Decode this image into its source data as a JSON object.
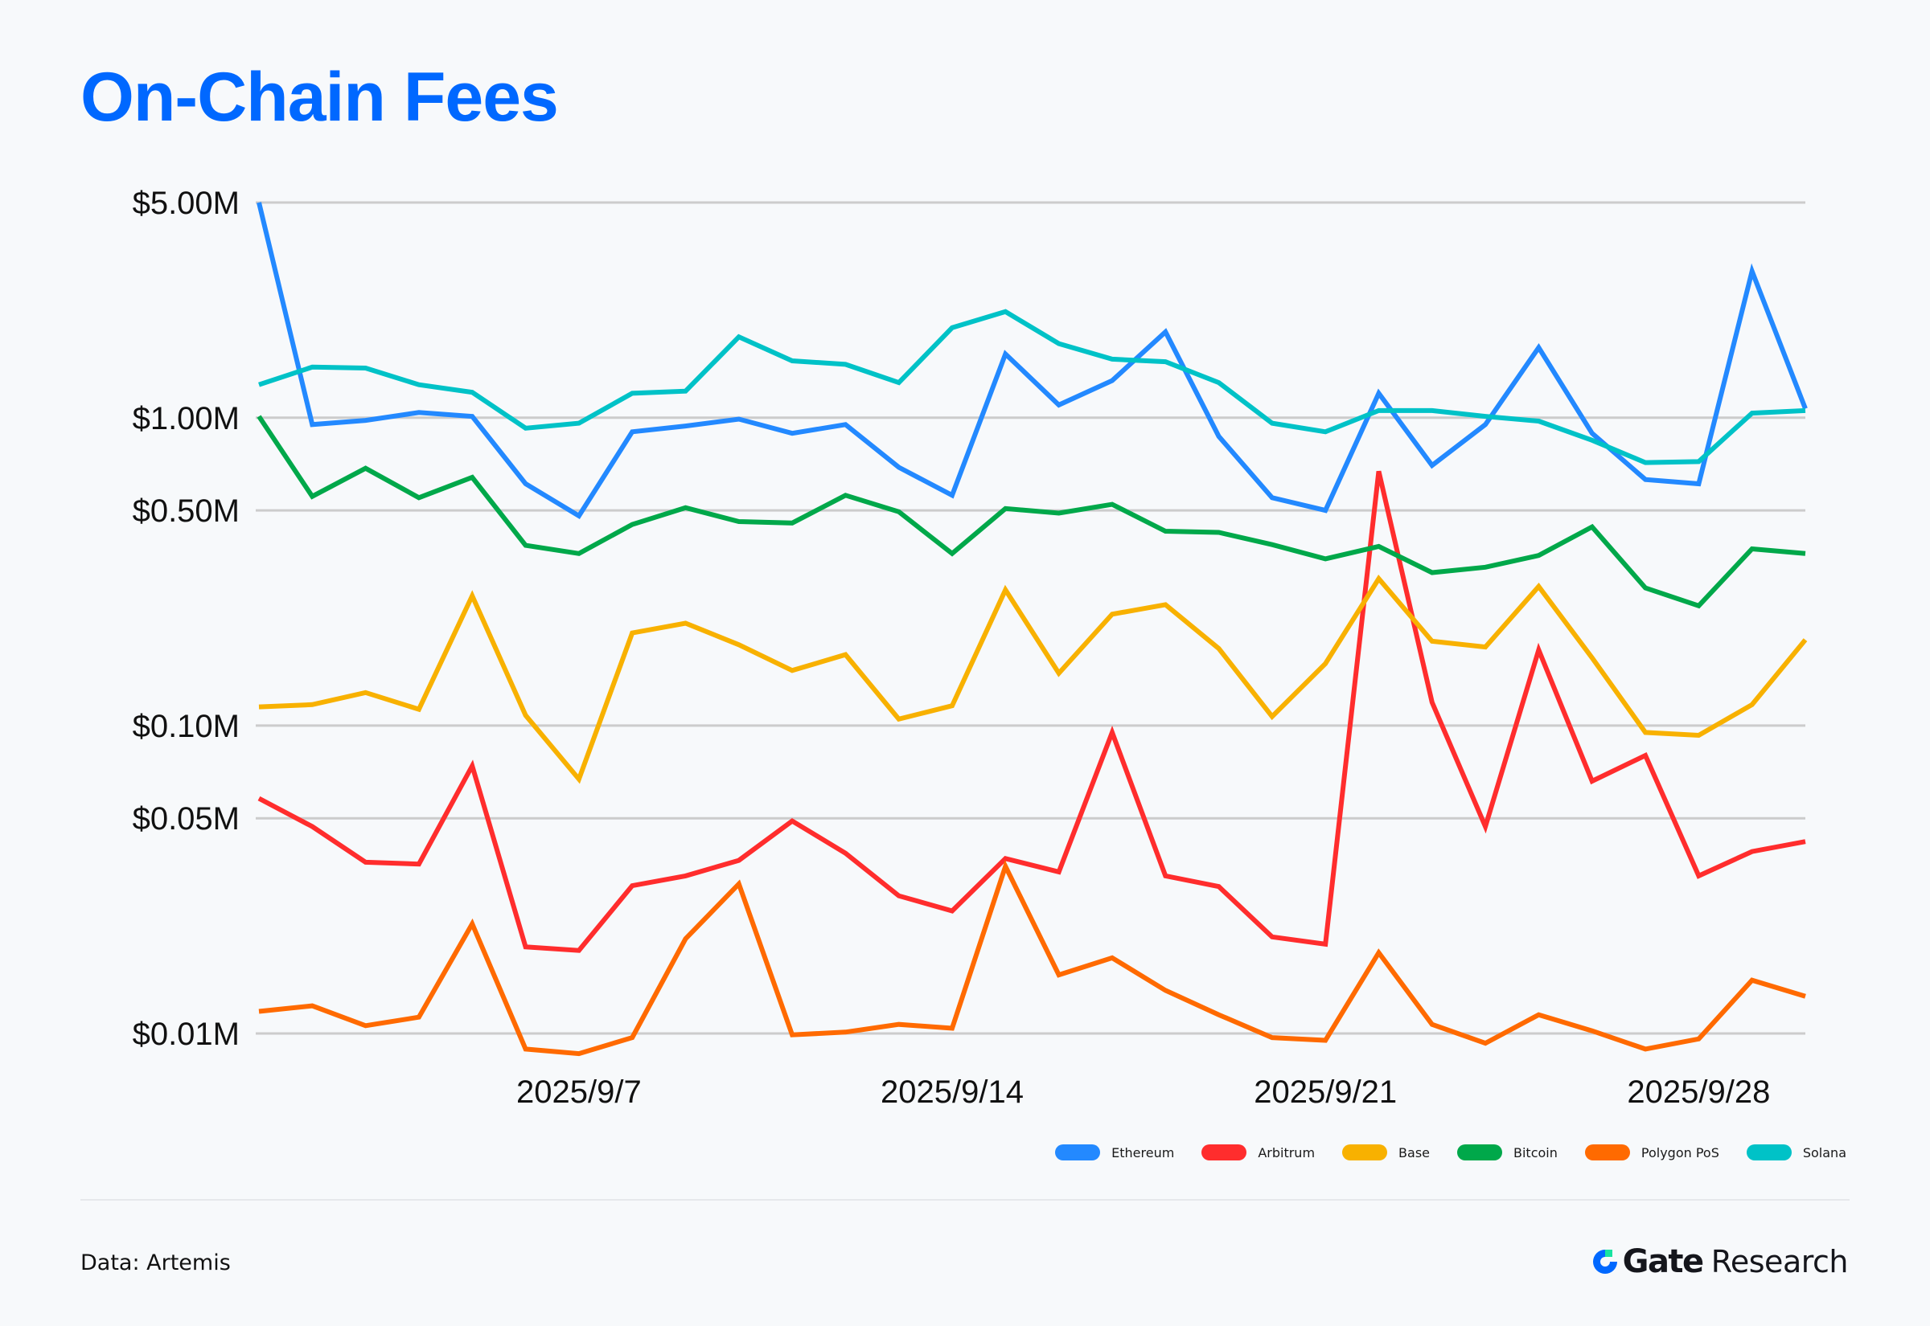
{
  "title": "On-Chain Fees",
  "source": "Data: Artemis",
  "brand": {
    "name": "Gate",
    "suffix": "Research"
  },
  "colors": {
    "title": "#0068ff",
    "Ethereum": "#2389ff",
    "Arbitrum": "#ff2d2d",
    "Base": "#f8b100",
    "Bitcoin": "#00a84a",
    "Polygon PoS": "#ff6a00",
    "Solana": "#00c2c7",
    "grid": "#cccccc",
    "logo_ring": "#0068ff",
    "logo_square": "#17e3a0"
  },
  "chart_data": {
    "type": "line",
    "title": "On-Chain Fees",
    "xlabel": "",
    "ylabel": "",
    "yscale": "log",
    "ylim": [
      0.01,
      5.0
    ],
    "y_unit": "USD millions",
    "y_ticks": [
      {
        "value": 5.0,
        "label": "$5.00M"
      },
      {
        "value": 1.0,
        "label": "$1.00M"
      },
      {
        "value": 0.5,
        "label": "$0.50M"
      },
      {
        "value": 0.1,
        "label": "$0.10M"
      },
      {
        "value": 0.05,
        "label": "$0.05M"
      },
      {
        "value": 0.01,
        "label": "$0.01M"
      }
    ],
    "x_ticks": [
      {
        "index": 6,
        "label": "2025/9/7"
      },
      {
        "index": 13,
        "label": "2025/9/14"
      },
      {
        "index": 20,
        "label": "2025/9/21"
      },
      {
        "index": 27,
        "label": "2025/9/28"
      }
    ],
    "grid": true,
    "legend_position": "bottom-right",
    "x": [
      "2025/9/1",
      "2025/9/2",
      "2025/9/3",
      "2025/9/4",
      "2025/9/5",
      "2025/9/6",
      "2025/9/7",
      "2025/9/8",
      "2025/9/9",
      "2025/9/10",
      "2025/9/11",
      "2025/9/12",
      "2025/9/13",
      "2025/9/14",
      "2025/9/15",
      "2025/9/16",
      "2025/9/17",
      "2025/9/18",
      "2025/9/19",
      "2025/9/20",
      "2025/9/21",
      "2025/9/22",
      "2025/9/23",
      "2025/9/24",
      "2025/9/25",
      "2025/9/26",
      "2025/9/27",
      "2025/9/28",
      "2025/9/29",
      "2025/9/30"
    ],
    "series": [
      {
        "name": "Ethereum",
        "values": [
          5.0,
          0.95,
          0.98,
          1.04,
          1.01,
          0.61,
          0.48,
          0.9,
          0.94,
          0.99,
          0.89,
          0.95,
          0.69,
          0.56,
          1.61,
          1.1,
          1.32,
          1.9,
          0.87,
          0.55,
          0.5,
          1.2,
          0.7,
          0.95,
          1.69,
          0.89,
          0.63,
          0.61,
          2.99,
          1.07
        ]
      },
      {
        "name": "Arbitrum",
        "values": [
          0.058,
          0.047,
          0.036,
          0.0355,
          0.074,
          0.0191,
          0.0186,
          0.0302,
          0.0325,
          0.0365,
          0.049,
          0.0385,
          0.028,
          0.025,
          0.037,
          0.0335,
          0.095,
          0.0325,
          0.03,
          0.0206,
          0.0195,
          0.67,
          0.119,
          0.047,
          0.176,
          0.066,
          0.08,
          0.0325,
          0.039,
          0.042
        ]
      },
      {
        "name": "Base",
        "values": [
          0.115,
          0.117,
          0.128,
          0.113,
          0.264,
          0.108,
          0.067,
          0.2,
          0.215,
          0.183,
          0.151,
          0.17,
          0.105,
          0.116,
          0.276,
          0.148,
          0.23,
          0.247,
          0.178,
          0.107,
          0.159,
          0.3,
          0.188,
          0.18,
          0.283,
          0.166,
          0.095,
          0.093,
          0.117,
          0.19
        ]
      },
      {
        "name": "Bitcoin",
        "values": [
          1.01,
          0.555,
          0.685,
          0.55,
          0.64,
          0.385,
          0.362,
          0.45,
          0.51,
          0.46,
          0.455,
          0.56,
          0.495,
          0.362,
          0.507,
          0.49,
          0.523,
          0.428,
          0.424,
          0.387,
          0.348,
          0.382,
          0.314,
          0.327,
          0.357,
          0.442,
          0.28,
          0.245,
          0.375,
          0.362
        ]
      },
      {
        "name": "Polygon PoS",
        "values": [
          0.0118,
          0.0123,
          0.0106,
          0.0113,
          0.0227,
          0.0089,
          0.0086,
          0.0097,
          0.0203,
          0.0306,
          0.0099,
          0.0101,
          0.0107,
          0.0104,
          0.0349,
          0.0155,
          0.0176,
          0.0138,
          0.0115,
          0.0097,
          0.0095,
          0.0183,
          0.0107,
          0.0093,
          0.0115,
          0.0102,
          0.0089,
          0.0096,
          0.0149,
          0.0132
        ]
      },
      {
        "name": "Solana",
        "values": [
          1.28,
          1.46,
          1.45,
          1.28,
          1.21,
          0.925,
          0.96,
          1.2,
          1.22,
          1.83,
          1.53,
          1.49,
          1.3,
          1.96,
          2.21,
          1.74,
          1.55,
          1.52,
          1.3,
          0.96,
          0.9,
          1.055,
          1.055,
          1.01,
          0.975,
          0.845,
          0.715,
          0.72,
          1.035,
          1.055
        ]
      }
    ]
  },
  "legend": [
    {
      "label": "Ethereum",
      "color": "#2389ff"
    },
    {
      "label": "Arbitrum",
      "color": "#ff2d2d"
    },
    {
      "label": "Base",
      "color": "#f8b100"
    },
    {
      "label": "Bitcoin",
      "color": "#00a84a"
    },
    {
      "label": "Polygon PoS",
      "color": "#ff6a00"
    },
    {
      "label": "Solana",
      "color": "#00c2c7"
    }
  ]
}
